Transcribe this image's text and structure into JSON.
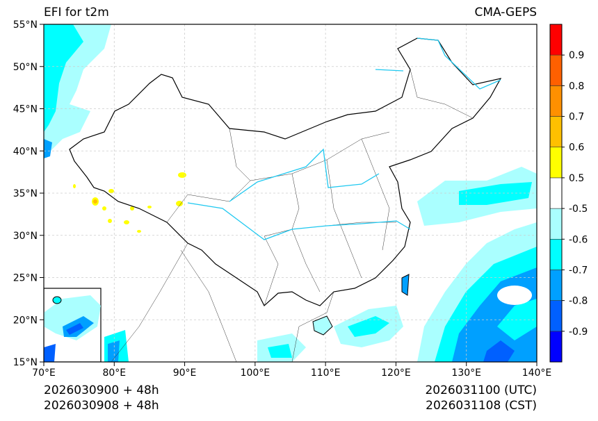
{
  "title_left": "EFI for t2m",
  "title_right": "CMA-GEPS",
  "footer_left": [
    "2026030900 + 48h",
    "2026030908 + 48h"
  ],
  "footer_right": [
    "2026031100 (UTC)",
    "2026031108 (CST)"
  ],
  "map": {
    "lon_range": [
      70,
      140
    ],
    "lat_range": [
      15,
      55
    ],
    "lon_ticks": [
      {
        "value": 70,
        "label": "70°E"
      },
      {
        "value": 80,
        "label": "80°E"
      },
      {
        "value": 90,
        "label": "90°E"
      },
      {
        "value": 100,
        "label": "100°E"
      },
      {
        "value": 110,
        "label": "110°E"
      },
      {
        "value": 120,
        "label": "120°E"
      },
      {
        "value": 130,
        "label": "130°E"
      },
      {
        "value": 140,
        "label": "140°E"
      }
    ],
    "lat_ticks": [
      {
        "value": 15,
        "label": "15°N"
      },
      {
        "value": 20,
        "label": "20°N"
      },
      {
        "value": 25,
        "label": "25°N"
      },
      {
        "value": 30,
        "label": "30°N"
      },
      {
        "value": 35,
        "label": "35°N"
      },
      {
        "value": 40,
        "label": "40°N"
      },
      {
        "value": 45,
        "label": "45°N"
      },
      {
        "value": 50,
        "label": "50°N"
      },
      {
        "value": 55,
        "label": "55°N"
      }
    ]
  },
  "colorbar": {
    "colors": [
      "#0000ff",
      "#0060ff",
      "#00a0ff",
      "#00ffff",
      "#aaffff",
      "#ffffff",
      "#ffff00",
      "#ffc000",
      "#ff9000",
      "#ff6000",
      "#ff0000"
    ],
    "labels": [
      "-0.9",
      "-0.8",
      "-0.7",
      "-0.6",
      "-0.5",
      "0.5",
      "0.6",
      "0.7",
      "0.8",
      "0.9"
    ]
  }
}
